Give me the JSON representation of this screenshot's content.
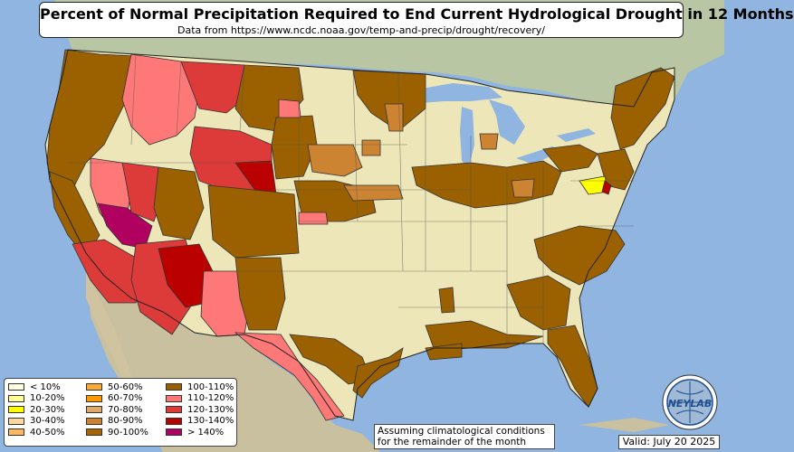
{
  "title": "Percent of Normal Precipitation Required to End Current Hydrological Drought in 12 Months",
  "subtitle": "Data from https://www.ncdc.noaa.gov/temp-and-precip/drought/recovery/",
  "note": {
    "line1": "Assuming climatological conditions",
    "line2": "for the remainder of the month"
  },
  "valid": "Valid: July 20 2025",
  "logo": {
    "text": "NEYLAB",
    "icon": "globe-logo-icon"
  },
  "legend": [
    {
      "label": "< 10%",
      "color": "#ffffe0"
    },
    {
      "label": "10-20%",
      "color": "#ffff99"
    },
    {
      "label": "20-30%",
      "color": "#ffff00"
    },
    {
      "label": "30-40%",
      "color": "#ffd8a0"
    },
    {
      "label": "40-50%",
      "color": "#ffb860"
    },
    {
      "label": "50-60%",
      "color": "#ffaa33"
    },
    {
      "label": "60-70%",
      "color": "#ff9900"
    },
    {
      "label": "70-80%",
      "color": "#e0a868"
    },
    {
      "label": "80-90%",
      "color": "#cc8433"
    },
    {
      "label": "90-100%",
      "color": "#a86400"
    },
    {
      "label": "100-110%",
      "color": "#9b6000"
    },
    {
      "label": "110-120%",
      "color": "#ff7878"
    },
    {
      "label": "120-130%",
      "color": "#dd3a3a"
    },
    {
      "label": "130-140%",
      "color": "#bb0000"
    },
    {
      "label": "> 140%",
      "color": "#b00060"
    }
  ]
}
